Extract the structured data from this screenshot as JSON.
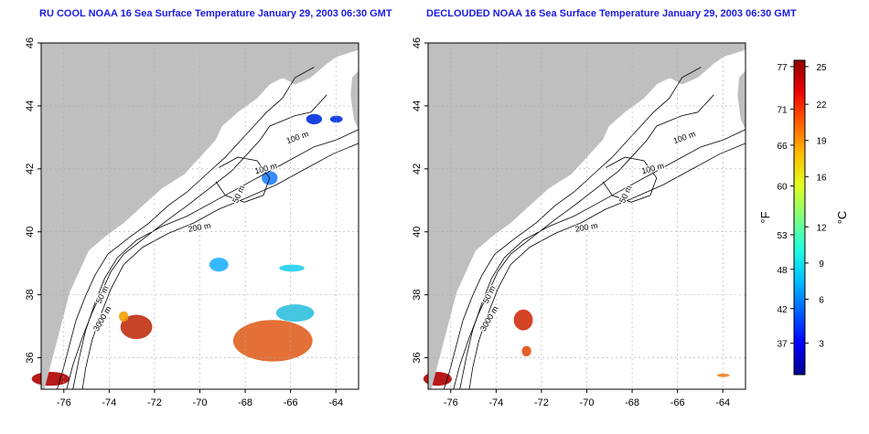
{
  "maps": [
    {
      "id": "left",
      "title": "RU COOL NOAA 16 Sea Surface Temperature January 29, 2003 06:30 GMT",
      "contour_labels": [
        "100 m",
        "100 m",
        "50 m",
        "200 m",
        "50 m",
        "3000 m"
      ]
    },
    {
      "id": "right",
      "title": "DECLOUDED NOAA 16 Sea Surface Temperature January 29, 2003 06:30 GMT",
      "contour_labels": [
        "100 m",
        "100 m",
        "50 m",
        "200 m",
        "50 m",
        "3000 m"
      ]
    }
  ],
  "axes": {
    "lat_ticks": [
      "46",
      "44",
      "42",
      "40",
      "38",
      "36"
    ],
    "lon_ticks": [
      "-76",
      "-74",
      "-72",
      "-70",
      "-68",
      "-66",
      "-64"
    ]
  },
  "colorbar": {
    "fahrenheit_label": "°F",
    "celsius_label": "°C",
    "fahrenheit_ticks": [
      "77",
      "71",
      "66",
      "60",
      "53",
      "48",
      "42",
      "37"
    ],
    "celsius_ticks": [
      "25",
      "22",
      "19",
      "16",
      "12",
      "9",
      "6",
      "3"
    ],
    "colors": [
      "#00008f",
      "#0000ff",
      "#0060ff",
      "#00bfff",
      "#20ffdf",
      "#80ff80",
      "#dfff20",
      "#ffbf00",
      "#ff6000",
      "#ef0000",
      "#8f0000"
    ]
  },
  "colors": {
    "title": "#1a1ae6",
    "land": "#bfbfbf",
    "ocean": "#ffffff",
    "contour": "#000000"
  }
}
